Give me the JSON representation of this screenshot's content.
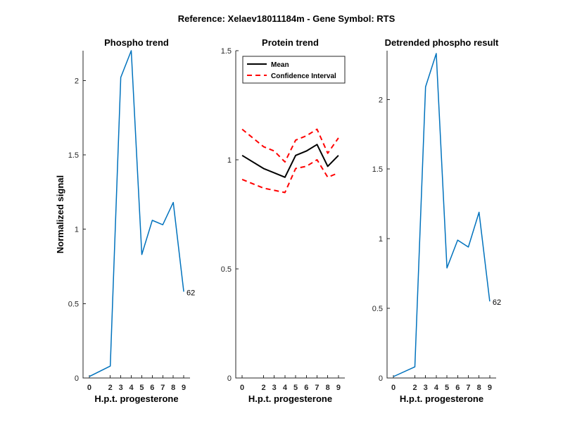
{
  "suptitle": "Reference:  Xelaev18011184m - Gene Symbol:  RTS",
  "chart_data": [
    {
      "type": "line",
      "title": "Phospho trend",
      "xlabel": "H.p.t. progesterone",
      "ylabel": "Normalized signal",
      "x": [
        0,
        2,
        3,
        4,
        5,
        6,
        7,
        8,
        9
      ],
      "xtick_labels": [
        "0",
        "2",
        "3",
        "4",
        "5",
        "6",
        "7",
        "8",
        "9"
      ],
      "ylim": [
        0,
        2.2
      ],
      "yticks": [
        0,
        0.5,
        1,
        1.5,
        2
      ],
      "ytick_labels": [
        "0",
        "0.5",
        "1",
        "1.5",
        "2"
      ],
      "series": [
        {
          "values": [
            0.01,
            0.08,
            2.02,
            2.2,
            0.83,
            1.06,
            1.03,
            1.18,
            0.58
          ],
          "color": "#0072BD"
        }
      ],
      "end_label": "62"
    },
    {
      "type": "line",
      "title": "Protein trend",
      "xlabel": "H.p.t. progesterone",
      "ylabel": "",
      "x": [
        0,
        2,
        3,
        4,
        5,
        6,
        7,
        8,
        9
      ],
      "xtick_labels": [
        "0",
        "2",
        "3",
        "4",
        "5",
        "6",
        "7",
        "8",
        "9"
      ],
      "ylim": [
        0,
        1.5
      ],
      "yticks": [
        0,
        0.5,
        1,
        1.5
      ],
      "ytick_labels": [
        "0",
        "0.5",
        "1",
        "1.5"
      ],
      "legend_position": "top-left",
      "series": [
        {
          "name": "Mean",
          "values": [
            1.02,
            0.96,
            0.94,
            0.92,
            1.02,
            1.04,
            1.07,
            0.97,
            1.02
          ],
          "color": "#000000",
          "style": "solid"
        },
        {
          "name": "Confidence Interval",
          "values": [
            1.14,
            1.06,
            1.04,
            0.99,
            1.09,
            1.11,
            1.14,
            1.03,
            1.1
          ],
          "color": "#FF0000",
          "style": "dashed"
        },
        {
          "name": "",
          "values": [
            0.91,
            0.87,
            0.86,
            0.85,
            0.96,
            0.97,
            1.0,
            0.92,
            0.94
          ],
          "color": "#FF0000",
          "style": "dashed"
        }
      ]
    },
    {
      "type": "line",
      "title": "Detrended phospho result",
      "xlabel": "H.p.t. progesterone",
      "ylabel": "",
      "x": [
        0,
        2,
        3,
        4,
        5,
        6,
        7,
        8,
        9
      ],
      "xtick_labels": [
        "0",
        "2",
        "3",
        "4",
        "5",
        "6",
        "7",
        "8",
        "9"
      ],
      "ylim": [
        0,
        2.35
      ],
      "yticks": [
        0,
        0.5,
        1,
        1.5,
        2
      ],
      "ytick_labels": [
        "0",
        "0.5",
        "1",
        "1.5",
        "2"
      ],
      "series": [
        {
          "values": [
            0.01,
            0.08,
            2.09,
            2.33,
            0.79,
            0.99,
            0.94,
            1.19,
            0.55
          ],
          "color": "#0072BD"
        }
      ],
      "end_label": "62"
    }
  ]
}
